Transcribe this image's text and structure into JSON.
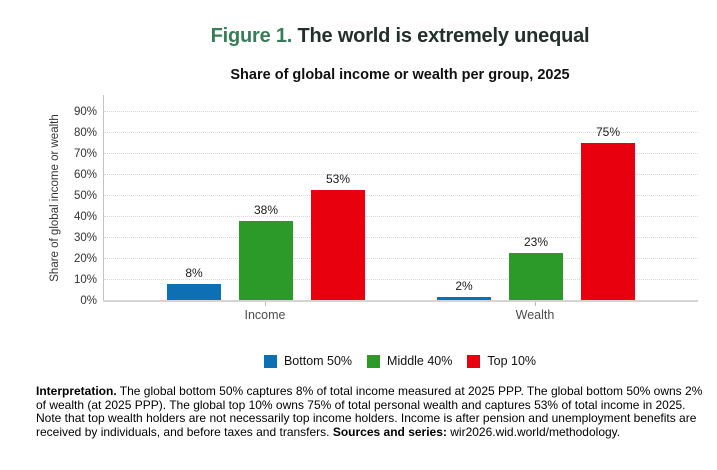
{
  "figure": {
    "label": "Figure 1.",
    "title": "The world is extremely unequal",
    "label_color": "#3a7c57",
    "title_color": "#22302b"
  },
  "chart_data": {
    "type": "bar",
    "title": "Share of global income or wealth per group, 2025",
    "ylabel": "Share of global income or wealth",
    "categories": [
      "Income",
      "Wealth"
    ],
    "series": [
      {
        "name": "Bottom 50%",
        "color": "#0d70b4",
        "values": [
          8,
          2
        ]
      },
      {
        "name": "Middle 40%",
        "color": "#2c9a28",
        "values": [
          38,
          23
        ]
      },
      {
        "name": "Top 10%",
        "color": "#e8000f",
        "values": [
          53,
          75
        ]
      }
    ],
    "value_suffix": "%",
    "ylim": [
      0,
      98
    ],
    "yticks": [
      0,
      10,
      20,
      30,
      40,
      50,
      60,
      70,
      80,
      90
    ],
    "ytick_suffix": "%",
    "grid": "horizontal-dotted",
    "legend_position": "bottom-center"
  },
  "notes": {
    "interpretation_label": "Interpretation.",
    "interpretation_text": " The global bottom 50% captures 8% of total income measured at 2025 PPP. The global bottom 50% owns 2% of wealth (at 2025 PPP). The global top 10% owns 75% of total personal wealth and captures 53% of total income in 2025. Note that top wealth holders are not necessarily top income holders. Income is after pension and unemployment benefits are received by individuals, and before taxes and transfers. ",
    "sources_label": "Sources and series:",
    "sources_text": " wir2026.wid.world/methodology."
  }
}
